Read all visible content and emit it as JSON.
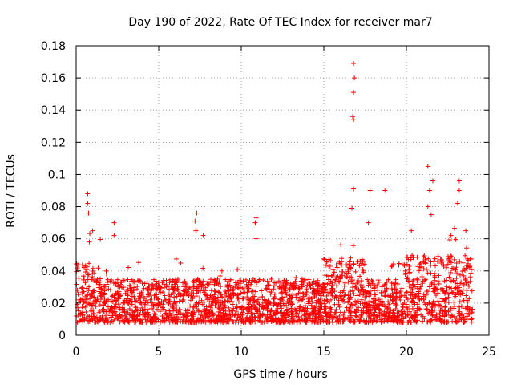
{
  "chart_data": {
    "type": "scatter",
    "title": "Day 190 of 2022, Rate Of TEC Index for receiver mar7",
    "xlabel": "GPS time / hours",
    "ylabel": "ROTI / TECUs",
    "xlim": [
      0,
      25
    ],
    "ylim": [
      0,
      0.18
    ],
    "x_ticks": [
      "0",
      "5",
      "10",
      "15",
      "20",
      "25"
    ],
    "y_ticks": [
      "0",
      "0.02",
      "0.04",
      "0.06",
      "0.08",
      "0.1",
      "0.12",
      "0.14",
      "0.16",
      "0.18"
    ],
    "grid": true,
    "marker": "+",
    "color": "#ff0000",
    "series": [
      {
        "name": "ROTI",
        "x_range": [
          0,
          24
        ],
        "baseline_band": [
          0.008,
          0.035
        ],
        "notable_points": [
          {
            "x": 0.7,
            "y": 0.088
          },
          {
            "x": 0.7,
            "y": 0.082
          },
          {
            "x": 0.75,
            "y": 0.076
          },
          {
            "x": 0.8,
            "y": 0.058
          },
          {
            "x": 1.0,
            "y": 0.065
          },
          {
            "x": 2.3,
            "y": 0.07
          },
          {
            "x": 2.3,
            "y": 0.062
          },
          {
            "x": 7.3,
            "y": 0.076
          },
          {
            "x": 7.2,
            "y": 0.071
          },
          {
            "x": 7.25,
            "y": 0.065
          },
          {
            "x": 7.7,
            "y": 0.062
          },
          {
            "x": 10.9,
            "y": 0.073
          },
          {
            "x": 10.85,
            "y": 0.07
          },
          {
            "x": 10.9,
            "y": 0.06
          },
          {
            "x": 16.8,
            "y": 0.169
          },
          {
            "x": 16.85,
            "y": 0.16
          },
          {
            "x": 16.8,
            "y": 0.151
          },
          {
            "x": 16.75,
            "y": 0.136
          },
          {
            "x": 16.8,
            "y": 0.134
          },
          {
            "x": 16.8,
            "y": 0.091
          },
          {
            "x": 17.8,
            "y": 0.09
          },
          {
            "x": 18.7,
            "y": 0.09
          },
          {
            "x": 16.7,
            "y": 0.079
          },
          {
            "x": 17.7,
            "y": 0.07
          },
          {
            "x": 21.3,
            "y": 0.105
          },
          {
            "x": 21.6,
            "y": 0.096
          },
          {
            "x": 21.4,
            "y": 0.09
          },
          {
            "x": 23.2,
            "y": 0.096
          },
          {
            "x": 23.2,
            "y": 0.09
          },
          {
            "x": 21.3,
            "y": 0.08
          },
          {
            "x": 23.1,
            "y": 0.082
          },
          {
            "x": 21.5,
            "y": 0.075
          },
          {
            "x": 20.3,
            "y": 0.065
          },
          {
            "x": 23.6,
            "y": 0.065
          },
          {
            "x": 22.7,
            "y": 0.062
          }
        ]
      }
    ]
  }
}
